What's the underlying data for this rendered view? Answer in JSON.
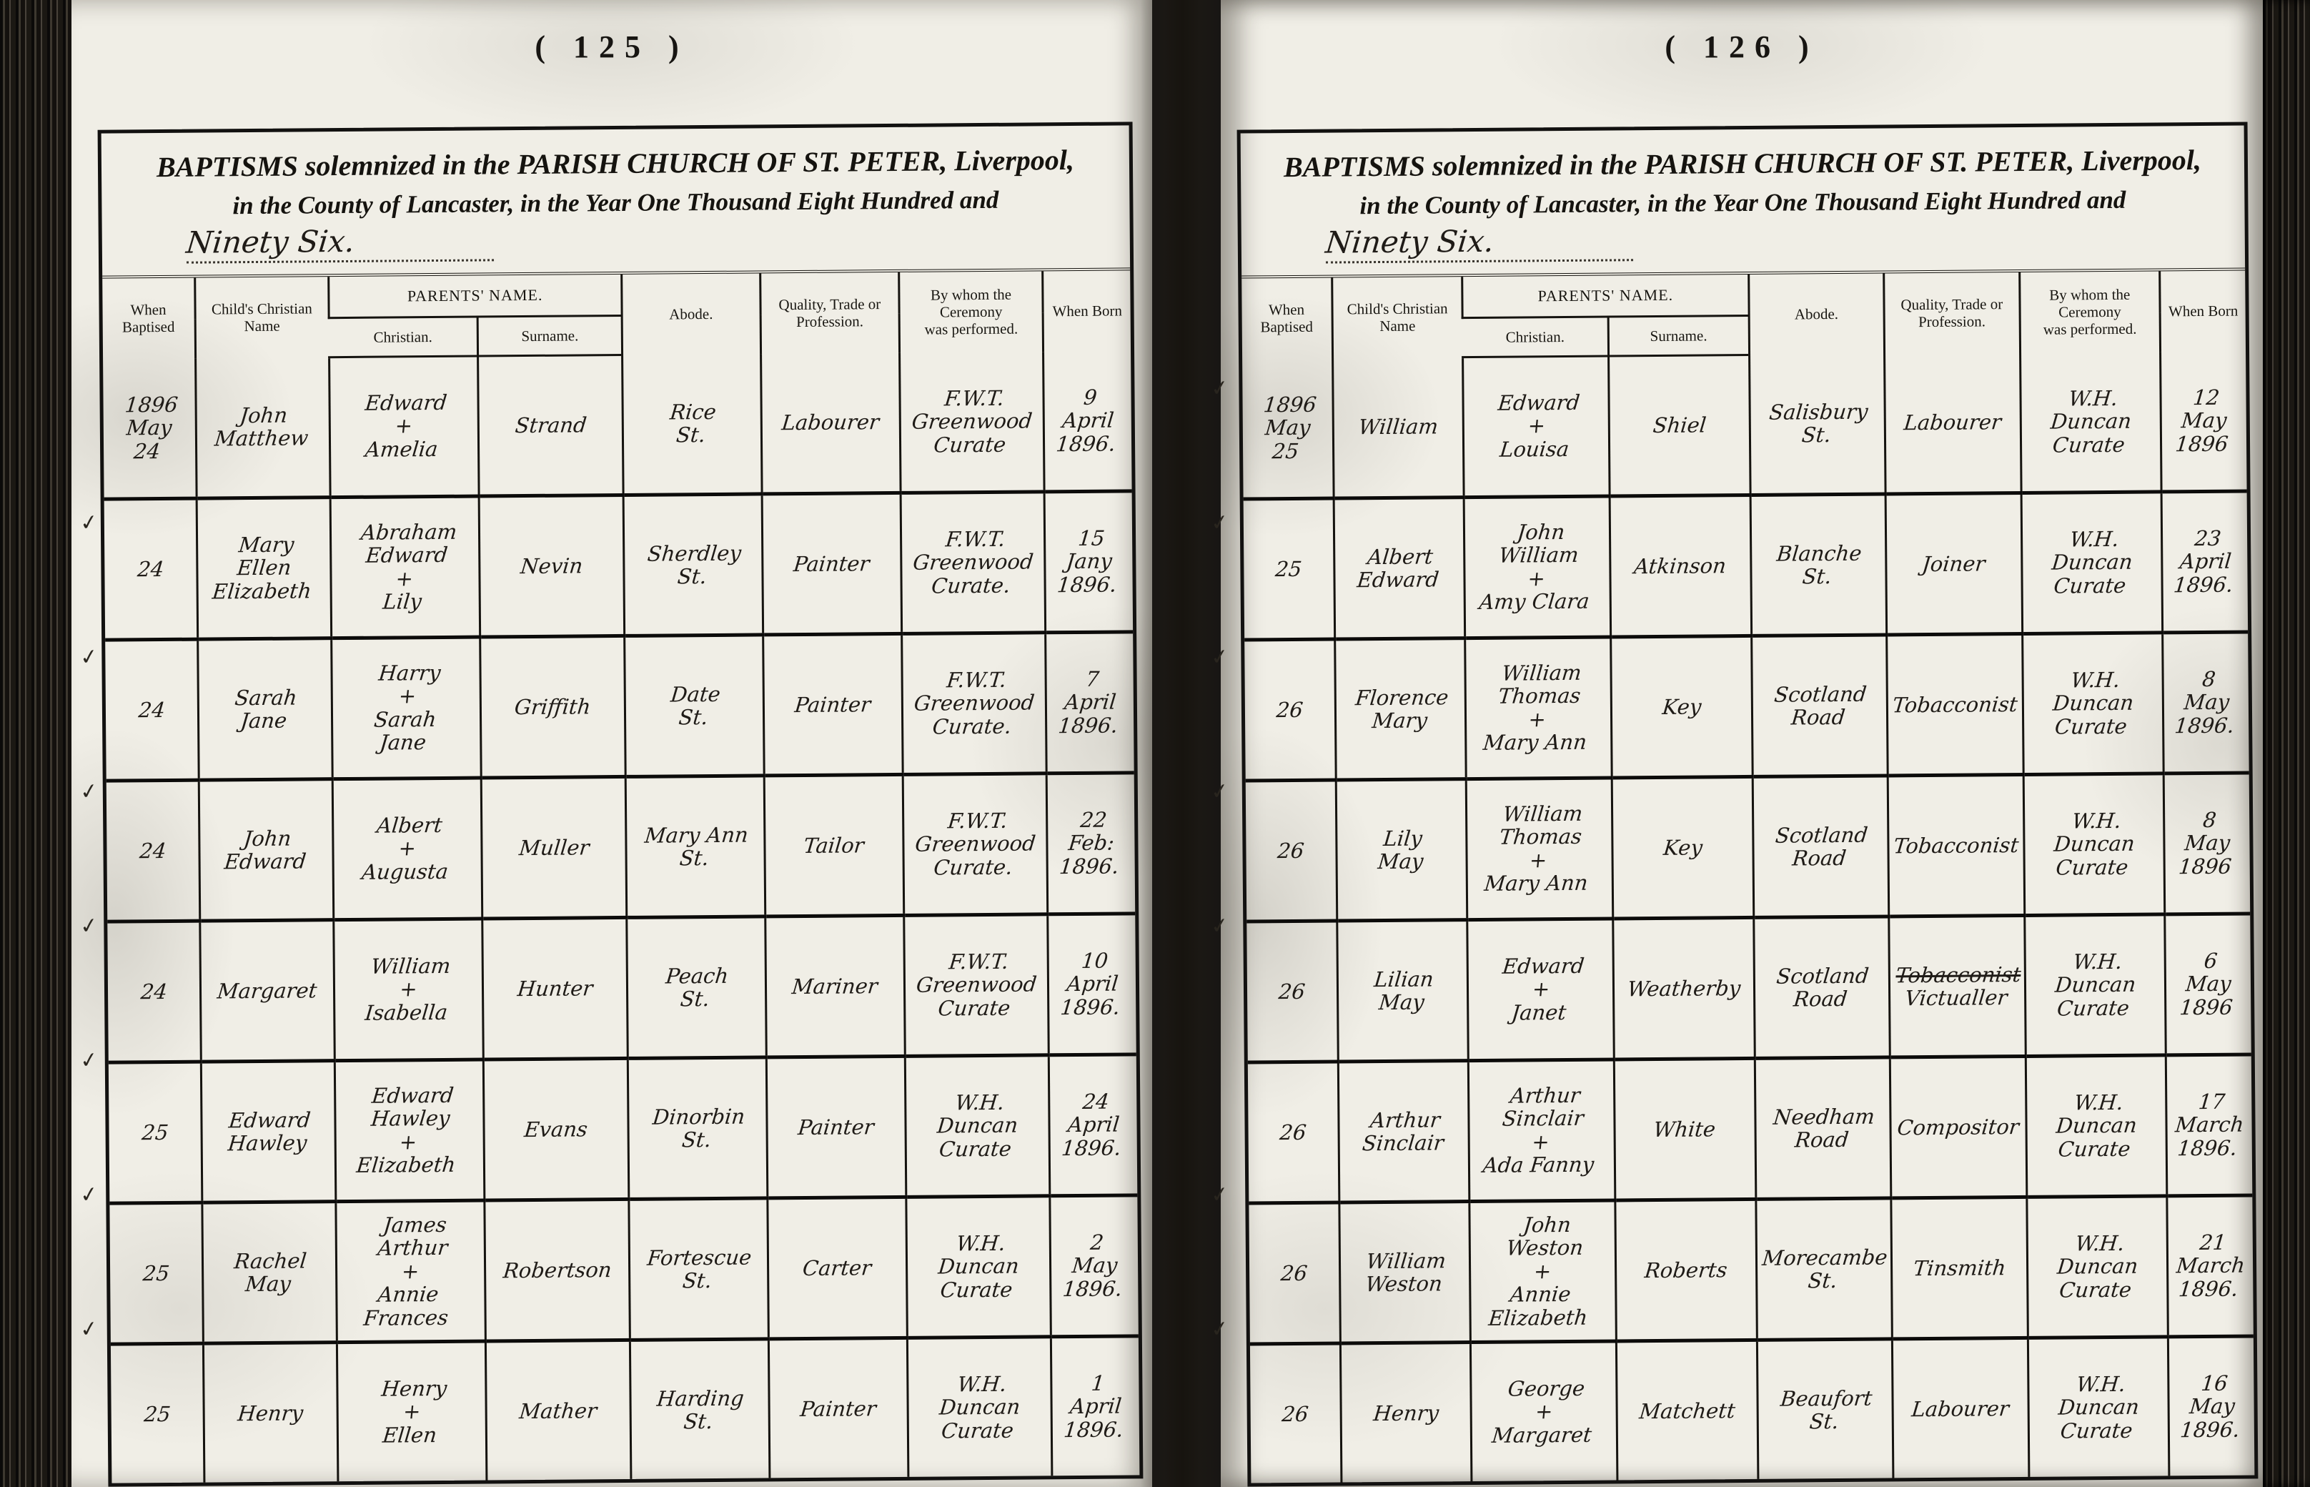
{
  "title": {
    "part1": "BAPTISMS",
    "part2": "solemnized in the",
    "part3": "PARISH CHURCH OF ST. PETER,",
    "part4": "Liverpool,",
    "line2": "in the County of Lancaster, in the Year One Thousand Eight Hundred and",
    "year_handwritten": "Ninety Six."
  },
  "columns": {
    "when_baptised": "When Baptised",
    "childs_christian_name": "Child's Christian Name",
    "parents_name": "PARENTS'  NAME.",
    "parents_christian": "Christian.",
    "parents_surname": "Surname.",
    "abode": "Abode.",
    "quality": "Quality, Trade or\nProfession.",
    "by_whom": "By whom the Ceremony\nwas performed.",
    "when_born": "When Born"
  },
  "tick_glyph": "✓",
  "pages": [
    {
      "number_display": "(  125  )",
      "rows": [
        {
          "tick": false,
          "baptised": "1896\nMay\n24",
          "child": "John\nMatthew",
          "parents": "Edward\n+\nAmelia",
          "surname": "Strand",
          "abode": "Rice\nSt.",
          "trade": "Labourer",
          "ceremony": "F.W.T.\nGreenwood\nCurate",
          "born": "9\nApril\n1896."
        },
        {
          "tick": true,
          "baptised": "24",
          "child": "Mary\nEllen\nElizabeth",
          "parents": "Abraham\nEdward\n+\nLily",
          "surname": "Nevin",
          "abode": "Sherdley\nSt.",
          "trade": "Painter",
          "ceremony": "F.W.T.\nGreenwood\nCurate.",
          "born": "15\nJany\n1896."
        },
        {
          "tick": true,
          "baptised": "24",
          "child": "Sarah\nJane",
          "parents": "Harry\n+\nSarah\nJane",
          "surname": "Griffith",
          "abode": "Date\nSt.",
          "trade": "Painter",
          "ceremony": "F.W.T.\nGreenwood\nCurate.",
          "born": "7\nApril\n1896."
        },
        {
          "tick": true,
          "baptised": "24",
          "child": "John\nEdward",
          "parents": "Albert\n+\nAugusta",
          "surname": "Muller",
          "abode": "Mary Ann\nSt.",
          "trade": "Tailor",
          "ceremony": "F.W.T.\nGreenwood\nCurate.",
          "born": "22\nFeb:\n1896."
        },
        {
          "tick": true,
          "baptised": "24",
          "child": "Margaret",
          "parents": "William\n+\nIsabella",
          "surname": "Hunter",
          "abode": "Peach\nSt.",
          "trade": "Mariner",
          "ceremony": "F.W.T.\nGreenwood\nCurate",
          "born": "10\nApril\n1896."
        },
        {
          "tick": true,
          "baptised": "25",
          "child": "Edward\nHawley",
          "parents": "Edward\nHawley\n+\nElizabeth",
          "surname": "Evans",
          "abode": "Dinorbin\nSt.",
          "trade": "Painter",
          "ceremony": "W.H. Duncan\nCurate",
          "born": "24\nApril\n1896."
        },
        {
          "tick": true,
          "baptised": "25",
          "child": "Rachel\nMay",
          "parents": "James\nArthur\n+\nAnnie\nFrances",
          "surname": "Robertson",
          "abode": "Fortescue\nSt.",
          "trade": "Carter",
          "ceremony": "W.H. Duncan\nCurate",
          "born": "2\nMay\n1896."
        },
        {
          "tick": true,
          "baptised": "25",
          "child": "Henry",
          "parents": "Henry\n+\nEllen",
          "surname": "Mather",
          "abode": "Harding\nSt.",
          "trade": "Painter",
          "ceremony": "W.H. Duncan\nCurate",
          "born": "1\nApril\n1896."
        }
      ]
    },
    {
      "number_display": "(  126  )",
      "rows": [
        {
          "tick": true,
          "baptised": "1896\nMay\n25",
          "child": "William",
          "parents": "Edward\n+\nLouisa",
          "surname": "Shiel",
          "abode": "Salisbury\nSt.",
          "trade": "Labourer",
          "ceremony": "W.H. Duncan\nCurate",
          "born": "12\nMay\n1896"
        },
        {
          "tick": true,
          "baptised": "25",
          "child": "Albert\nEdward",
          "parents": "John\nWilliam\n+\nAmy Clara",
          "surname": "Atkinson",
          "abode": "Blanche\nSt.",
          "trade": "Joiner",
          "ceremony": "W.H. Duncan\nCurate",
          "born": "23\nApril\n1896."
        },
        {
          "tick": true,
          "baptised": "26",
          "child": "Florence\nMary",
          "parents": "William\nThomas\n+\nMary Ann",
          "surname": "Key",
          "abode": "Scotland\nRoad",
          "trade": "Tobacconist",
          "ceremony": "W.H. Duncan\nCurate",
          "born": "8\nMay\n1896."
        },
        {
          "tick": true,
          "baptised": "26",
          "child": "Lily\nMay",
          "parents": "William\nThomas\n+\nMary Ann",
          "surname": "Key",
          "abode": "Scotland\nRoad",
          "trade": "Tobacconist",
          "ceremony": "W.H. Duncan\nCurate",
          "born": "8\nMay\n1896"
        },
        {
          "tick": true,
          "baptised": "26",
          "child": "Lilian\nMay",
          "parents": "Edward\n+\nJanet",
          "surname": "Weatherby",
          "abode": "Scotland\nRoad",
          "trade_struck": "Tobacconist",
          "trade": "Victualler",
          "ceremony": "W.H. Duncan\nCurate",
          "born": "6\nMay\n1896"
        },
        {
          "tick": false,
          "baptised": "26",
          "child": "Arthur\nSinclair",
          "parents": "Arthur\nSinclair\n+\nAda Fanny",
          "surname": "White",
          "abode": "Needham\nRoad",
          "trade": "Compositor",
          "ceremony": "W.H. Duncan\nCurate",
          "born": "17\nMarch\n1896."
        },
        {
          "tick": true,
          "baptised": "26",
          "child": "William\nWeston",
          "parents": "John\nWeston\n+\nAnnie\nElizabeth",
          "surname": "Roberts",
          "abode": "Morecambe\nSt.",
          "trade": "Tinsmith",
          "ceremony": "W.H. Duncan\nCurate",
          "born": "21\nMarch\n1896."
        },
        {
          "tick": true,
          "baptised": "26",
          "child": "Henry",
          "parents": "George\n+\nMargaret",
          "surname": "Matchett",
          "abode": "Beaufort\nSt.",
          "trade": "Labourer",
          "ceremony": "W.H. Duncan\nCurate",
          "born": "16\nMay\n1896."
        }
      ]
    }
  ]
}
